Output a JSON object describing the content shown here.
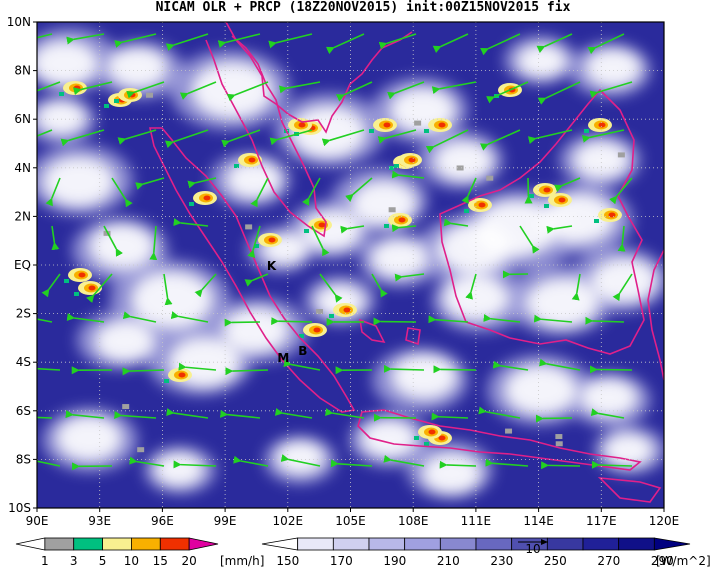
{
  "title": "NICAM OLR + PRCP (18Z20NOV2015) init:00Z15NOV2015 fix",
  "lat_labels": [
    "10N",
    "8N",
    "6N",
    "4N",
    "2N",
    "EQ",
    "2S",
    "4S",
    "6S",
    "8S",
    "10S"
  ],
  "lon_labels": [
    "90E",
    "93E",
    "96E",
    "99E",
    "102E",
    "105E",
    "108E",
    "111E",
    "114E",
    "117E",
    "120E"
  ],
  "stations": [
    {
      "label": "K",
      "lon": 101.0,
      "lat": -0.2
    },
    {
      "label": "M",
      "lon": 101.5,
      "lat": -4.0
    },
    {
      "label": "B",
      "lon": 102.5,
      "lat": -3.7
    }
  ],
  "precip_legend": {
    "colors": [
      "#ffffff",
      "#a0a0a0",
      "#00c080",
      "#f8f090",
      "#f8b000",
      "#f03000",
      "#e000a0"
    ],
    "labels": [
      "1",
      "3",
      "5",
      "10",
      "15",
      "20"
    ],
    "unit": "[mm/h]"
  },
  "olr_legend": {
    "colors": [
      "#ffffff",
      "#e8e8f8",
      "#d0d0f0",
      "#b8b8e8",
      "#a0a0e0",
      "#8888d0",
      "#6868c0",
      "#5050b0",
      "#3838a0",
      "#202098",
      "#101088",
      "#000080"
    ],
    "labels": [
      "150",
      "170",
      "190",
      "210",
      "230",
      "250",
      "270",
      "290"
    ],
    "unit": "[W/m^2]",
    "ref_vector_label": "10"
  },
  "colors": {
    "ocean": "#2a2a9c",
    "coast": "#e0208a",
    "wind": "#22d022"
  }
}
